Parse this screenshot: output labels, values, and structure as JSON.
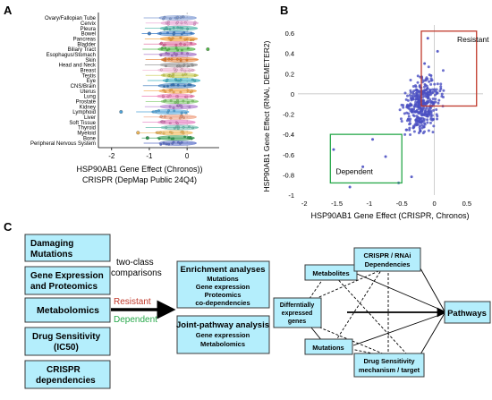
{
  "panels": {
    "a": "A",
    "b": "B",
    "c": "C"
  },
  "colors": {
    "box_fill": "#b4eefc",
    "box_stroke": "#3a3a3a",
    "resistant": "#c0392b",
    "dependent": "#27a84a",
    "scatter": "#4a4fc2"
  },
  "panel_a": {
    "xlabel_line1": "HSP90AB1 Gene Effect (Chronos))",
    "xlabel_line2": "CRISPR (DepMap Public 24Q4)",
    "xticks": [
      "-2",
      "-1",
      "0"
    ],
    "xtick_values": [
      -2,
      -1,
      0
    ],
    "xlim": [
      -2.35,
      0.85
    ],
    "lineages": [
      {
        "name": "Ovary/Fallopian Tube",
        "color": "#7f9ad3",
        "center": -0.25
      },
      {
        "name": "Cervix",
        "color": "#e69fd2",
        "center": -0.2
      },
      {
        "name": "Pleura",
        "color": "#4bb5a8",
        "center": -0.22
      },
      {
        "name": "Bowel",
        "color": "#3d7ec9",
        "center": -0.3
      },
      {
        "name": "Pancreas",
        "color": "#f39c34",
        "center": -0.22
      },
      {
        "name": "Bladder",
        "color": "#e0649a",
        "center": -0.25
      },
      {
        "name": "Biliary Tract",
        "color": "#53b848",
        "center": -0.28
      },
      {
        "name": "Esophagus/Stomach",
        "color": "#a26dc4",
        "center": -0.25
      },
      {
        "name": "Skin",
        "color": "#e67c2d",
        "center": -0.2
      },
      {
        "name": "Head and Neck",
        "color": "#9a9a9a",
        "center": -0.22
      },
      {
        "name": "Breast",
        "color": "#f0b4d0",
        "center": -0.28
      },
      {
        "name": "Testis",
        "color": "#c7cb4e",
        "center": -0.2
      },
      {
        "name": "Eye",
        "color": "#3fb2c2",
        "center": -0.15
      },
      {
        "name": "CNS/Brain",
        "color": "#2f73b8",
        "center": -0.27
      },
      {
        "name": "Uterus",
        "color": "#f5a84a",
        "center": -0.25
      },
      {
        "name": "Lung",
        "color": "#ee7fb8",
        "center": -0.3
      },
      {
        "name": "Prostate",
        "color": "#7ec86a",
        "center": -0.2
      },
      {
        "name": "Kidney",
        "color": "#b07cd0",
        "center": -0.22
      },
      {
        "name": "Lymphoid",
        "color": "#4fa3d9",
        "center": -0.45
      },
      {
        "name": "Liver",
        "color": "#ef9a7a",
        "center": -0.25
      },
      {
        "name": "Soft Tissue",
        "color": "#e37cc0",
        "center": -0.28
      },
      {
        "name": "Thyroid",
        "color": "#6ec0b0",
        "center": -0.2
      },
      {
        "name": "Myeloid",
        "color": "#f0b85a",
        "center": -0.35
      },
      {
        "name": "Bone",
        "color": "#2e9a4e",
        "center": -0.3
      },
      {
        "name": "Peripheral Nervous System",
        "color": "#5b6fc8",
        "center": -0.25
      }
    ]
  },
  "chart_data": {
    "type": "scatter",
    "xlabel": "HSP90AB1 Gene Effect (CRISPR, Chronos)",
    "ylabel": "HSP90AB1 Gene Effect (RNAi, DEMETER2)",
    "xlim": [
      -2.1,
      0.75
    ],
    "ylim": [
      -1.0,
      0.68
    ],
    "xticks": [
      -2,
      -1.5,
      -1,
      -0.5,
      0,
      0.5
    ],
    "xtick_labels": [
      "-2",
      "-1.5",
      "-1",
      "-0.5",
      "0",
      "0.5"
    ],
    "yticks": [
      0.6,
      0.4,
      0.2,
      0,
      -0.2,
      -0.4,
      -0.6,
      -0.8,
      -1
    ],
    "ytick_labels": [
      "0.6",
      "0.4",
      "0.2",
      "0",
      "-0.2",
      "-0.4",
      "-0.6",
      "-0.8",
      "-1"
    ],
    "regions": [
      {
        "label": "Resistant",
        "x0": -0.2,
        "x1": 0.65,
        "y0": -0.12,
        "y1": 0.62
      },
      {
        "label": "Dependent",
        "x0": -1.6,
        "x1": -0.5,
        "y0": -0.88,
        "y1": -0.4
      }
    ],
    "outliers": [
      {
        "x": -1.55,
        "y": -0.55
      },
      {
        "x": -1.3,
        "y": -0.92
      },
      {
        "x": -1.1,
        "y": -0.72
      },
      {
        "x": -0.95,
        "y": -0.45
      },
      {
        "x": -0.75,
        "y": -0.62
      },
      {
        "x": -0.1,
        "y": 0.55
      },
      {
        "x": 0.05,
        "y": 0.42
      },
      {
        "x": -0.15,
        "y": 0.3
      },
      {
        "x": -0.05,
        "y": 0.18
      },
      {
        "x": 0.1,
        "y": 0.05
      },
      {
        "x": -0.35,
        "y": -0.82
      },
      {
        "x": -0.55,
        "y": -0.88
      }
    ]
  },
  "panel_c": {
    "left_boxes": [
      "Damaging Mutations",
      "Gene Expression and Proteomics",
      "Metabolomics",
      "Drug Sensitivity (IC50)",
      "CRISPR dependencies"
    ],
    "two_class_line1": "two-class",
    "two_class_line2": "comparisons",
    "resistant_label": "Resistant",
    "dependent_label": "Dependent",
    "enrichment": {
      "title": "Enrichment analyses",
      "items": [
        "Mutations",
        "Gene expression",
        "Proteomics",
        "co-dependencies"
      ]
    },
    "joint": {
      "title": "Joint-pathway analysis",
      "items": [
        "Gene expression",
        "Metabolomics"
      ]
    },
    "network": {
      "metabolites": "Metabolites",
      "crispr_rnai_line1": "CRISPR / RNAi",
      "crispr_rnai_line2": "Dependencies",
      "diff_line1": "Differntially",
      "diff_line2": "expressed",
      "diff_line3": "genes",
      "mutations": "Mutations",
      "drug_line1": "Drug Sensitivity",
      "drug_line2": "mechanism / target",
      "pathways": "Pathways"
    }
  }
}
